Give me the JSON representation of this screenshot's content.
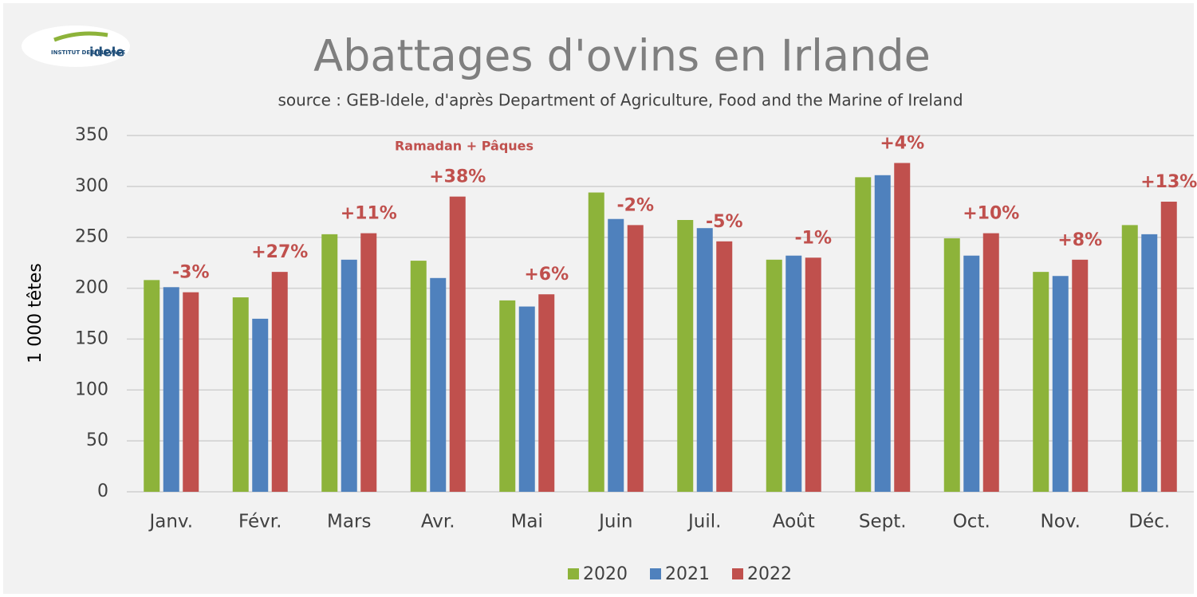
{
  "chart_data": {
    "type": "bar",
    "title": "Abattages d'ovins en Irlande",
    "subtitle": "source : GEB-Idele, d'après Department of Agriculture, Food and the Marine of Ireland",
    "logo": "INSTITUT DE L'ELEVAGE",
    "logo_brand": "idele",
    "y_label": "1 000 têtes",
    "annotation": "Ramadan + Pâques",
    "categories": [
      "Janv.",
      "Févr.",
      "Mars",
      "Avr.",
      "Mai",
      "Juin",
      "Juil.",
      "Août",
      "Sept.",
      "Oct.",
      "Nov.",
      "Déc."
    ],
    "series": [
      {
        "name": "2020",
        "color": "#8db33a",
        "values": [
          208,
          191,
          253,
          227,
          188,
          294,
          267,
          228,
          309,
          249,
          216,
          262
        ]
      },
      {
        "name": "2021",
        "color": "#4f81bd",
        "values": [
          201,
          170,
          228,
          210,
          182,
          268,
          259,
          232,
          311,
          232,
          212,
          253
        ]
      },
      {
        "name": "2022",
        "color": "#c0504d",
        "values": [
          196,
          216,
          254,
          290,
          194,
          262,
          246,
          230,
          323,
          254,
          228,
          285
        ]
      }
    ],
    "change_labels": [
      "-3%",
      "+27%",
      "+11%",
      "+38%",
      "+6%",
      "-2%",
      "-5%",
      "-1%",
      "+4%",
      "+10%",
      "+8%",
      "+13%"
    ],
    "ylim": [
      0,
      350
    ],
    "yticks": [
      0,
      50,
      100,
      150,
      200,
      250,
      300,
      350
    ],
    "grid": true,
    "legend": "bottom"
  }
}
